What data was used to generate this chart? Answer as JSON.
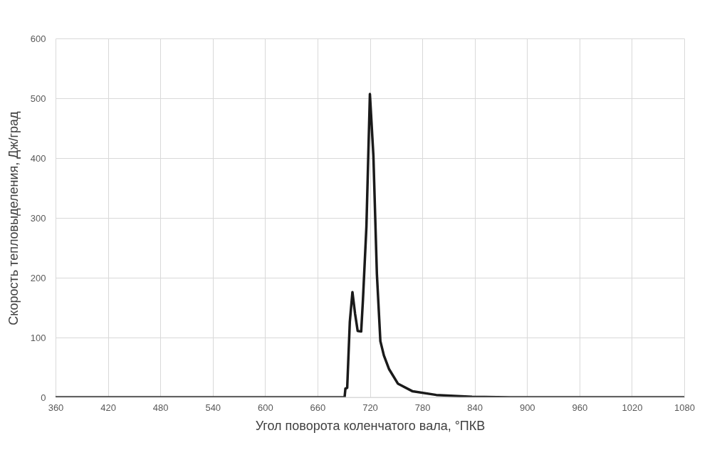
{
  "chart_data": {
    "type": "line",
    "xlabel": "Угол поворота коленчатого вала, °ПКВ",
    "ylabel": "Скорость тепловыделения, Дж/град",
    "x": [
      360,
      691,
      692,
      693,
      694,
      697,
      700,
      703,
      706,
      710,
      712,
      716,
      720,
      724,
      728,
      732,
      736,
      742,
      752,
      769,
      796,
      837,
      880,
      1080
    ],
    "series": [
      {
        "color": "#1a1a1a",
        "values": [
          0,
          0,
          15,
          15,
          16,
          126,
          176,
          140,
          111,
          110,
          162,
          285,
          507,
          404,
          206,
          94,
          70,
          47,
          23,
          10,
          4,
          1,
          0,
          0
        ]
      }
    ],
    "xlim": [
      360,
      1080
    ],
    "xticks": [
      360,
      420,
      480,
      540,
      600,
      660,
      720,
      780,
      840,
      900,
      960,
      1020,
      1080
    ],
    "ylim": [
      0,
      600
    ],
    "yticks": [
      0,
      100,
      200,
      300,
      400,
      500,
      600
    ],
    "grid": true,
    "line_style": "solid",
    "marker": "none"
  }
}
